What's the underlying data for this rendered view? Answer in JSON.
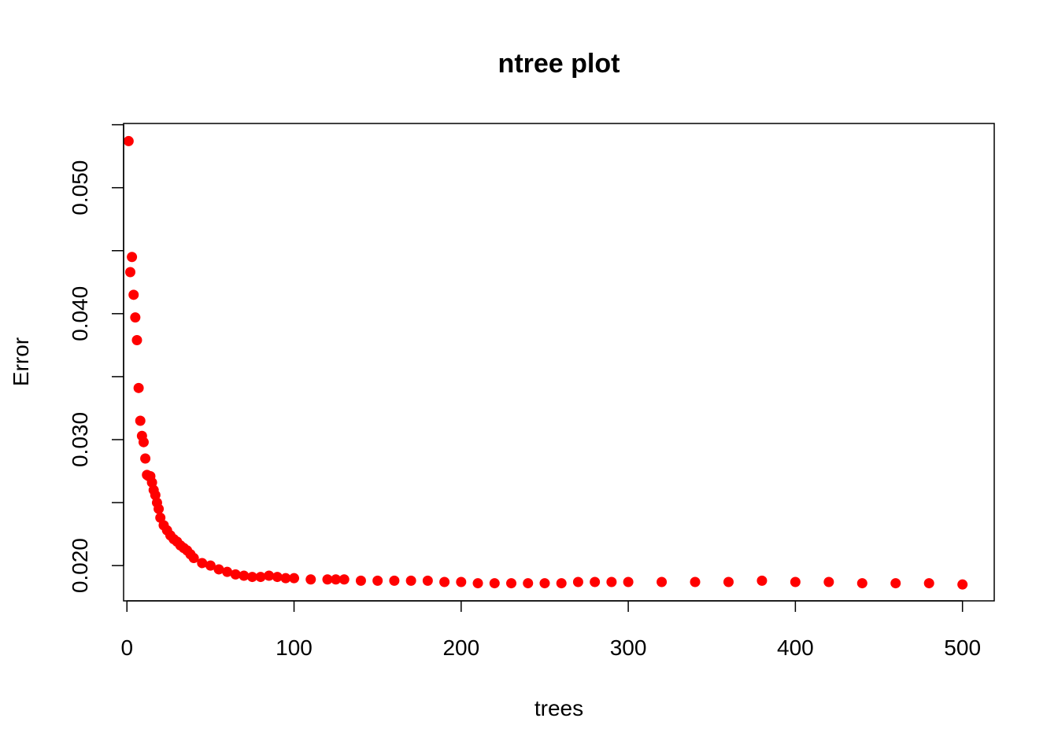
{
  "chart_data": {
    "type": "scatter",
    "title": "ntree plot",
    "xlabel": "trees",
    "ylabel": "Error",
    "xlim": [
      -2,
      519
    ],
    "ylim": [
      0.0172,
      0.0551
    ],
    "xticks": [
      0,
      100,
      200,
      300,
      400,
      500
    ],
    "xtick_labels": [
      "0",
      "100",
      "200",
      "300",
      "400",
      "500"
    ],
    "yticks": [
      0.02,
      0.025,
      0.03,
      0.035,
      0.04,
      0.045,
      0.05,
      0.055
    ],
    "ytick_labels": [
      "0.020",
      "0.030",
      "0.040",
      "0.050"
    ],
    "ytick_label_values": [
      0.02,
      0.03,
      0.04,
      0.05
    ],
    "grid": false,
    "legend": false,
    "color": "#ff0000",
    "series": [
      {
        "x": [
          1,
          2,
          3,
          4,
          5,
          6,
          7,
          8,
          9,
          10,
          11,
          12,
          13,
          14,
          15,
          16,
          17,
          18,
          19,
          20,
          22,
          24,
          26,
          28,
          30,
          32,
          34,
          36,
          38,
          40,
          45,
          50,
          55,
          60,
          65,
          70,
          75,
          80,
          85,
          90,
          95,
          100,
          110,
          120,
          125,
          130,
          140,
          150,
          160,
          170,
          180,
          190,
          200,
          210,
          220,
          230,
          240,
          250,
          260,
          270,
          280,
          290,
          300,
          320,
          340,
          360,
          380,
          400,
          420,
          440,
          460,
          480,
          500
        ],
        "y": [
          0.0537,
          0.0433,
          0.0445,
          0.0415,
          0.0397,
          0.0379,
          0.0341,
          0.0315,
          0.0303,
          0.0298,
          0.0285,
          0.0272,
          0.0271,
          0.0271,
          0.0266,
          0.026,
          0.0256,
          0.025,
          0.0245,
          0.0238,
          0.0232,
          0.0228,
          0.0224,
          0.0221,
          0.0219,
          0.0216,
          0.0214,
          0.0212,
          0.0209,
          0.0206,
          0.0202,
          0.02,
          0.0197,
          0.0195,
          0.0193,
          0.0192,
          0.0191,
          0.0191,
          0.0192,
          0.0191,
          0.019,
          0.019,
          0.0189,
          0.0189,
          0.0189,
          0.0189,
          0.0188,
          0.0188,
          0.0188,
          0.0188,
          0.0188,
          0.0187,
          0.0187,
          0.0186,
          0.0186,
          0.0186,
          0.0186,
          0.0186,
          0.0186,
          0.0187,
          0.0187,
          0.0187,
          0.0187,
          0.0187,
          0.0187,
          0.0187,
          0.0188,
          0.0187,
          0.0187,
          0.0186,
          0.0186,
          0.0186,
          0.0185
        ]
      }
    ]
  }
}
